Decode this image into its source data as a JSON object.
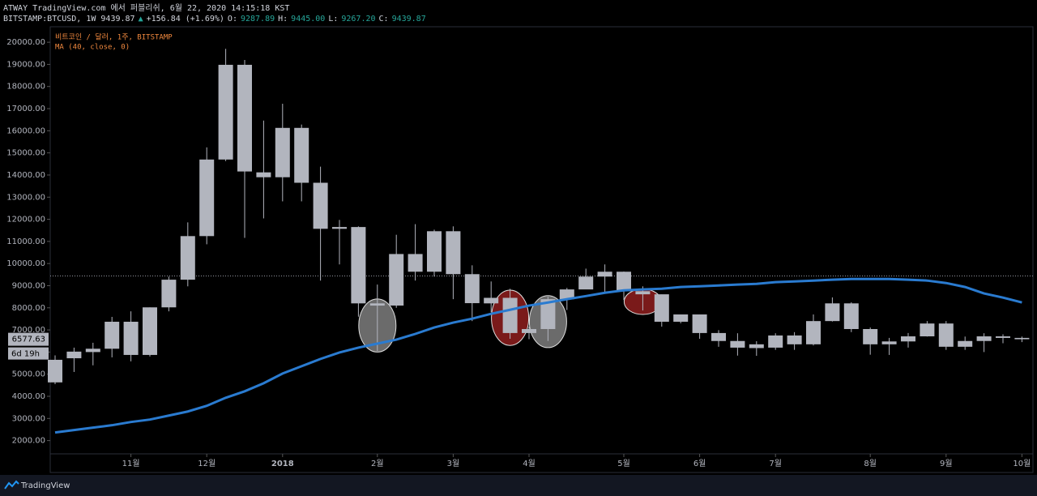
{
  "header": {
    "published": "ATWAY TradingView.com 에서 퍼블리쉬, 6월 22, 2020 14:15:18 KST",
    "quote": [
      {
        "text": "BITSTAMP:BTCUSD, 1W 9439.87",
        "color": "#d1d4dc"
      },
      {
        "text": "▲",
        "color": "#26a69a"
      },
      {
        "text": "+156.84 (+1.69%)",
        "color": "#d1d4dc"
      },
      {
        "text": "O:",
        "color": "#d1d4dc"
      },
      {
        "text": "9287.89",
        "color": "#26a69a"
      },
      {
        "text": "H:",
        "color": "#d1d4dc"
      },
      {
        "text": "9445.00",
        "color": "#26a69a"
      },
      {
        "text": "L:",
        "color": "#d1d4dc"
      },
      {
        "text": "9267.20",
        "color": "#26a69a"
      },
      {
        "text": "C:",
        "color": "#d1d4dc"
      },
      {
        "text": "9439.87",
        "color": "#26a69a"
      }
    ]
  },
  "chart_data": {
    "type": "candlestick",
    "categories": [
      null,
      null,
      null,
      null,
      "11월",
      null,
      null,
      null,
      "12월",
      null,
      null,
      null,
      "2018",
      null,
      null,
      null,
      null,
      "2월",
      null,
      null,
      null,
      "3월",
      null,
      null,
      null,
      "4월",
      null,
      null,
      null,
      null,
      "5월",
      null,
      null,
      null,
      "6월",
      null,
      null,
      null,
      "7월",
      null,
      null,
      null,
      null,
      "8월",
      null,
      null,
      null,
      "9월",
      null,
      null,
      null,
      "10월"
    ],
    "series": [
      {
        "name": "비트코인 / 달러, 1주, BITSTAMP",
        "color": "#b2b5be",
        "open": [
          4630,
          5720,
          6000,
          6150,
          7370,
          5870,
          8020,
          9270,
          11240,
          14700,
          18980,
          14120,
          13900,
          16130,
          13650,
          11570,
          11650,
          8200,
          8100,
          10430,
          9630,
          11460,
          9520,
          8200,
          8450,
          6860,
          7040,
          8390,
          8830,
          9410,
          9630,
          8750,
          8610,
          7370,
          7700,
          6860,
          6500,
          6350,
          6200,
          6750,
          6350,
          7400,
          8200,
          7040,
          6350,
          6480,
          6710,
          7290,
          6240,
          6500,
          6710,
          6640
        ],
        "high": [
          5850,
          6200,
          6420,
          7590,
          7840,
          8020,
          9410,
          11860,
          15250,
          19700,
          19200,
          16460,
          17220,
          16280,
          14380,
          11970,
          11680,
          9050,
          11300,
          11780,
          11530,
          11680,
          9920,
          9190,
          8860,
          7150,
          8500,
          8900,
          9770,
          9960,
          9640,
          8970,
          8600,
          7700,
          7700,
          6990,
          6850,
          6490,
          6850,
          6900,
          7700,
          8470,
          8250,
          7110,
          6640,
          6860,
          7400,
          7400,
          6700,
          6850,
          6800,
          6700
        ],
        "low": [
          4550,
          5100,
          5400,
          5760,
          5580,
          5800,
          7840,
          8970,
          10870,
          14630,
          11160,
          12040,
          12810,
          12810,
          9230,
          9960,
          7600,
          6050,
          8000,
          9230,
          9410,
          8390,
          7400,
          7800,
          6600,
          6580,
          6500,
          7900,
          8900,
          8700,
          8350,
          7880,
          7150,
          7300,
          6600,
          6240,
          5840,
          5830,
          6100,
          6100,
          6300,
          7380,
          6900,
          5880,
          5870,
          6200,
          6700,
          6100,
          6100,
          6000,
          6400,
          6450
        ],
        "close": [
          5650,
          6020,
          6150,
          7370,
          5870,
          8020,
          9270,
          11240,
          14700,
          18980,
          14160,
          13900,
          16130,
          13650,
          11570,
          11650,
          8200,
          8100,
          10430,
          9630,
          11460,
          9520,
          8210,
          8450,
          6860,
          7040,
          8390,
          8830,
          9410,
          9630,
          8750,
          8610,
          7370,
          7700,
          6860,
          6500,
          6200,
          6180,
          6750,
          6350,
          7400,
          8200,
          7040,
          6350,
          6480,
          6710,
          7290,
          6240,
          6500,
          6710,
          6640,
          6580
        ]
      },
      {
        "name": "MA (40, close, 0)",
        "type": "line",
        "color": "#2a7bd0",
        "values": [
          2365,
          2475,
          2584,
          2694,
          2840,
          2950,
          3130,
          3314,
          3570,
          3935,
          4227,
          4592,
          5030,
          5360,
          5690,
          5980,
          6200,
          6380,
          6560,
          6820,
          7110,
          7330,
          7510,
          7730,
          7910,
          8100,
          8240,
          8390,
          8530,
          8680,
          8790,
          8830,
          8860,
          8940,
          8970,
          9010,
          9050,
          9080,
          9160,
          9190,
          9230,
          9270,
          9300,
          9300,
          9300,
          9270,
          9230,
          9120,
          8940,
          8650,
          8460,
          8240
        ]
      }
    ],
    "ylim": [
      1400,
      20700
    ],
    "yticks": [
      {
        "value": 2000,
        "label": "2000.00"
      },
      {
        "value": 3000,
        "label": "3000.00"
      },
      {
        "value": 4000,
        "label": "4000.00"
      },
      {
        "value": 5000,
        "label": "5000.00"
      },
      {
        "value": 6000,
        "label": "6000.00"
      },
      {
        "value": 7000,
        "label": "7000.00"
      },
      {
        "value": 8000,
        "label": "8000.00"
      },
      {
        "value": 9000,
        "label": "9000.00"
      },
      {
        "value": 10000,
        "label": "10000.00"
      },
      {
        "value": 11000,
        "label": "11000.00"
      },
      {
        "value": 12000,
        "label": "12000.00"
      },
      {
        "value": 13000,
        "label": "13000.00"
      },
      {
        "value": 14000,
        "label": "14000.00"
      },
      {
        "value": 15000,
        "label": "15000.00"
      },
      {
        "value": 16000,
        "label": "16000.00"
      },
      {
        "value": 17000,
        "label": "17000.00"
      },
      {
        "value": 18000,
        "label": "18000.00"
      },
      {
        "value": 19000,
        "label": "19000.00"
      },
      {
        "value": 20000,
        "label": "20000.00"
      }
    ],
    "price_line": 9439.87,
    "last_price": {
      "value": 6577.63,
      "label": "6577.63"
    },
    "countdown": "6d 19h"
  },
  "footer": {
    "brand": "TradingView"
  }
}
